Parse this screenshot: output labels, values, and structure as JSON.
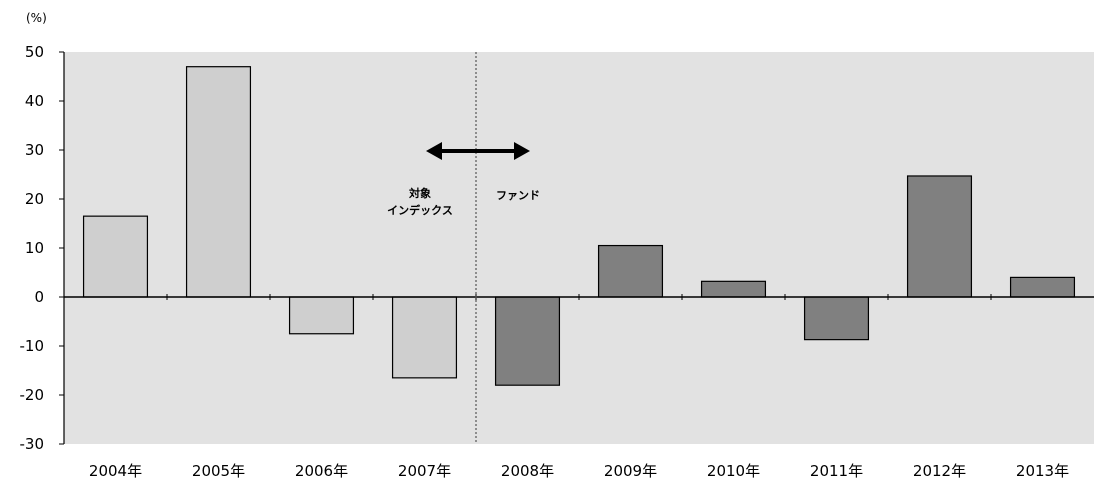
{
  "chart_data": {
    "type": "bar",
    "unit_label": "(%)",
    "categories": [
      "2004年",
      "2005年",
      "2006年",
      "2007年",
      "2008年",
      "2009年",
      "2010年",
      "2011年",
      "2012年",
      "2013年"
    ],
    "values": [
      16.5,
      47,
      -7.5,
      -16.5,
      -18,
      10.5,
      3.2,
      -8.7,
      24.7,
      4
    ],
    "ylim": [
      -30,
      50
    ],
    "yticks": [
      50,
      40,
      30,
      20,
      10,
      0,
      -10,
      -20,
      -30
    ],
    "grid": false,
    "divider_after_category_index": 3,
    "annotations": {
      "left_lines": [
        "対象",
        "インデックス"
      ],
      "right": "ファンド"
    },
    "colors": {
      "plot_background": "#e2e2e2",
      "index_bar": "#cfcfcf",
      "fund_bar": "#808080",
      "bar_outline": "#000000"
    }
  }
}
